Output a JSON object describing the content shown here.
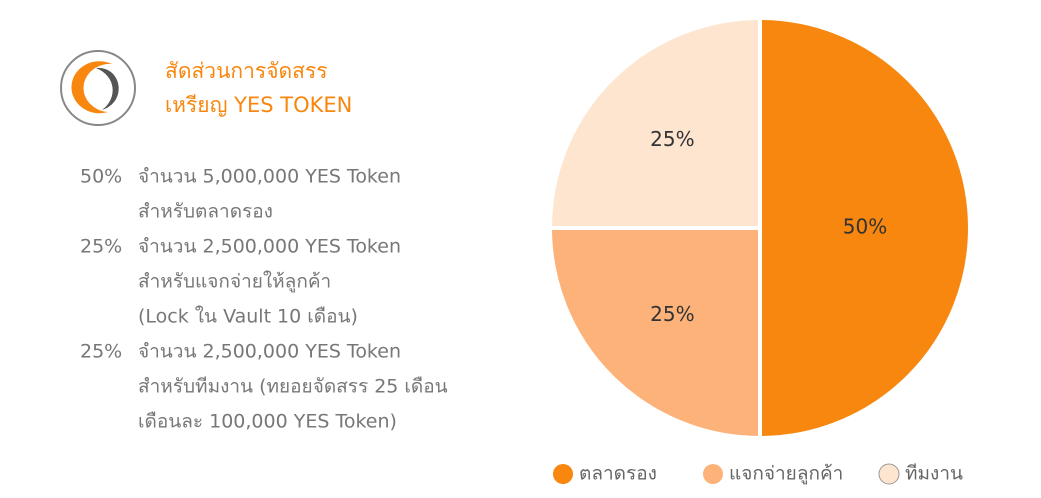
{
  "header": {
    "title_lines": [
      "สัดส่วนการจัดสรร",
      "เหรียญ YES TOKEN"
    ]
  },
  "allocations": [
    {
      "percent": "50%",
      "lines": [
        "จำนวน 5,000,000 YES Token",
        "สำหรับตลาดรอง"
      ]
    },
    {
      "percent": "25%",
      "lines": [
        "จำนวน 2,500,000 YES Token",
        "สำหรับแจกจ่ายให้ลูกค้า",
        "(Lock ใน Vault 10 เดือน)"
      ]
    },
    {
      "percent": "25%",
      "lines": [
        "จำนวน 2,500,000 YES Token",
        "สำหรับทีมงาน (ทยอยจัดสรร 25 เดือน",
        "เดือนละ 100,000 YES Token)"
      ]
    }
  ],
  "chart_data": {
    "type": "pie",
    "categories": [
      "ตลาดรอง",
      "แจกจ่ายลูกค้า",
      "ทีมงาน"
    ],
    "values": [
      50,
      25,
      25
    ],
    "value_labels": [
      "50%",
      "25%",
      "25%"
    ],
    "colors": [
      "#f7870f",
      "#fdb27a",
      "#fde5d0"
    ],
    "legend": "bottom"
  }
}
